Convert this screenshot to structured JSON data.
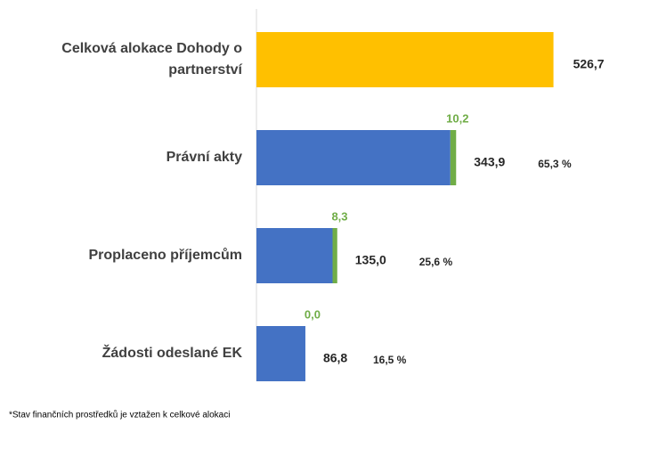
{
  "chart_data": {
    "type": "stacked-bar-horizontal",
    "categories": [
      "Celková alokace Dohody o partnerství",
      "Právní akty",
      "Proplaceno příjemcům",
      "Žádosti odeslané EK"
    ],
    "series": [
      {
        "color": "#ffc000",
        "values": [
          526.7,
          null,
          null,
          null
        ],
        "value_labels": [
          "526,7",
          null,
          null,
          null
        ]
      },
      {
        "color": "#4472c4",
        "values": [
          null,
          343.9,
          135.0,
          86.8
        ],
        "value_labels": [
          null,
          "343,9",
          "135,0",
          "86,8"
        ]
      },
      {
        "color": "#70ad47",
        "values": [
          null,
          10.2,
          8.3,
          0.0
        ],
        "value_labels": [
          null,
          "10,2",
          "8,3",
          "0,0"
        ]
      }
    ],
    "shares": [
      null,
      65.3,
      25.6,
      16.5
    ],
    "share_labels": [
      null,
      "65,3 %",
      "25,6 %",
      "16,5 %"
    ],
    "xlim": [
      0,
      600
    ],
    "footnote": "*Stav finančních prostředků je vztažen k celkové alokaci"
  }
}
